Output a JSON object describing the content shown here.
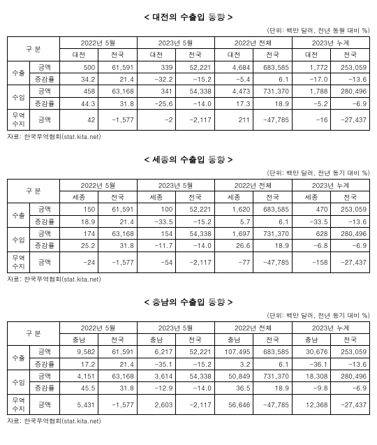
{
  "colors": {
    "background": "#ffffff",
    "border": "#000000",
    "text": "#000000"
  },
  "typography": {
    "title_fontsize": 12,
    "cell_fontsize": 9.5,
    "note_fontsize": 9
  },
  "unit_label": "(단위: 백만 달러, 전년 동월 대비 %)",
  "unit_label_alt": "(단위: 백만 달러, 전년 동기 대비 %)",
  "source": "자료: 한국무역협회(stat.kita.net)",
  "period_headers": [
    "2022년 5월",
    "2023년 5월",
    "2022년 전체",
    "2023년 누계"
  ],
  "row_group_labels": {
    "gubun": "구 분",
    "export": "수출",
    "import": "수입",
    "balance": "무역\n수지",
    "amount": "금액",
    "rate": "증감률"
  },
  "sections": [
    {
      "title": "< 대전의 수출입 동향 >",
      "unit": "(단위: 백만 달러, 전년 동월 대비 %)",
      "region_label": "대전",
      "national_label": "전국",
      "rows": {
        "export_amount": [
          "500",
          "61,591",
          "339",
          "52,221",
          "4,684",
          "683,585",
          "1,772",
          "253,059"
        ],
        "export_rate": [
          "34.2",
          "21.4",
          "-32.2",
          "-15.2",
          "-5.4",
          "6.1",
          "-17.0",
          "-13.6"
        ],
        "import_amount": [
          "458",
          "63,168",
          "341",
          "54,338",
          "4,473",
          "731,370",
          "1,788",
          "280,496"
        ],
        "import_rate": [
          "44.3",
          "31.8",
          "-25.6",
          "-14.0",
          "17.3",
          "18.9",
          "-5.2",
          "-6.9"
        ],
        "balance_amount": [
          "42",
          "-1,577",
          "-2",
          "-2,117",
          "211",
          "-47,785",
          "-16",
          "-27,437"
        ]
      }
    },
    {
      "title": "< 세종의 수출입 동향 >",
      "unit": "(단위: 백만 달러, 전년 동기 대비 %)",
      "region_label": "세종",
      "national_label": "전국",
      "rows": {
        "export_amount": [
          "150",
          "61,591",
          "100",
          "52,221",
          "1,620",
          "683,585",
          "470",
          "253,059"
        ],
        "export_rate": [
          "18.9",
          "21.4",
          "-33.5",
          "-15.2",
          "5.7",
          "6.1",
          "-33.5",
          "-13.6"
        ],
        "import_amount": [
          "174",
          "63,168",
          "154",
          "54,338",
          "1,697",
          "731,370",
          "628",
          "280,496"
        ],
        "import_rate": [
          "25.2",
          "31.8",
          "-11.7",
          "-14.0",
          "26.6",
          "18.9",
          "-6.8",
          "-6.9"
        ],
        "balance_amount": [
          "-24",
          "-1,577",
          "-54",
          "-2,117",
          "-77",
          "-47,785",
          "-158",
          "-27,437"
        ]
      }
    },
    {
      "title": "< 충남의 수출입 동향 >",
      "unit": "(단위: 백만 달러, 전년 동기 대비 %)",
      "region_label": "충남",
      "national_label": "전국",
      "rows": {
        "export_amount": [
          "9,582",
          "61,591",
          "6,217",
          "52,221",
          "107,495",
          "683,585",
          "30,676",
          "253,059"
        ],
        "export_rate": [
          "17.2",
          "21.4",
          "-35.1",
          "-15.2",
          "3.2",
          "6.1",
          "-36.1",
          "-13.6"
        ],
        "import_amount": [
          "4,151",
          "63,168",
          "3,614",
          "54,338",
          "50,849",
          "731,370",
          "18,308",
          "280,496"
        ],
        "import_rate": [
          "45.5",
          "31.8",
          "-12.9",
          "-14.0",
          "36.5",
          "18.9",
          "-9.8",
          "-6.9"
        ],
        "balance_amount": [
          "5,431",
          "-1,577",
          "2,603",
          "-2,117",
          "56,646",
          "-47,785",
          "12,368",
          "-27,437"
        ]
      }
    }
  ]
}
